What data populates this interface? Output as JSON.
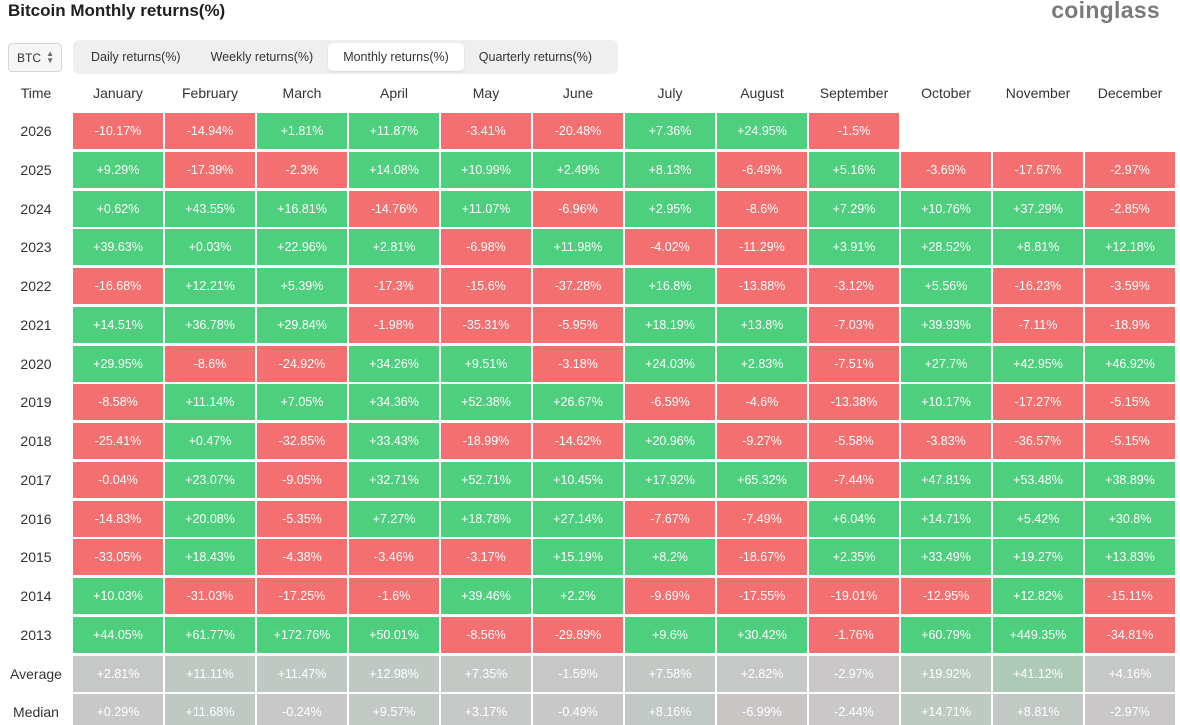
{
  "page": {
    "title": "Bitcoin Monthly returns(%)",
    "brand": "coinglass"
  },
  "symbol_select": {
    "value": "BTC"
  },
  "tabs": [
    {
      "label": "Daily returns(%)",
      "active": false
    },
    {
      "label": "Weekly returns(%)",
      "active": false
    },
    {
      "label": "Monthly returns(%)",
      "active": true
    },
    {
      "label": "Quarterly returns(%)",
      "active": false
    }
  ],
  "colors": {
    "positive": "#4dcf7d",
    "negative": "#f46f6f",
    "neutral": "#c8c8c8"
  },
  "chart_data": {
    "type": "heatmap",
    "title": "Bitcoin Monthly returns(%)",
    "corner_label": "Time",
    "columns": [
      "January",
      "February",
      "March",
      "April",
      "May",
      "June",
      "July",
      "August",
      "September",
      "October",
      "November",
      "December"
    ],
    "rows": [
      {
        "label": "2026",
        "values": [
          "-10.17%",
          "-14.94%",
          "+1.81%",
          "+11.87%",
          "-3.41%",
          "-20.48%",
          "+7.36%",
          "+24.95%",
          "-1.5%",
          null,
          null,
          null
        ]
      },
      {
        "label": "2025",
        "values": [
          "+9.29%",
          "-17.39%",
          "-2.3%",
          "+14.08%",
          "+10.99%",
          "+2.49%",
          "+8.13%",
          "-6.49%",
          "+5.16%",
          "-3.69%",
          "-17.67%",
          "-2.97%"
        ]
      },
      {
        "label": "2024",
        "values": [
          "+0.62%",
          "+43.55%",
          "+16.81%",
          "-14.76%",
          "+11.07%",
          "-6.96%",
          "+2.95%",
          "-8.6%",
          "+7.29%",
          "+10.76%",
          "+37.29%",
          "-2.85%"
        ]
      },
      {
        "label": "2023",
        "values": [
          "+39.63%",
          "+0.03%",
          "+22.96%",
          "+2.81%",
          "-6.98%",
          "+11.98%",
          "-4.02%",
          "-11.29%",
          "+3.91%",
          "+28.52%",
          "+8.81%",
          "+12.18%"
        ]
      },
      {
        "label": "2022",
        "values": [
          "-16.68%",
          "+12.21%",
          "+5.39%",
          "-17.3%",
          "-15.6%",
          "-37.28%",
          "+16.8%",
          "-13.88%",
          "-3.12%",
          "+5.56%",
          "-16.23%",
          "-3.59%"
        ]
      },
      {
        "label": "2021",
        "values": [
          "+14.51%",
          "+36.78%",
          "+29.84%",
          "-1.98%",
          "-35.31%",
          "-5.95%",
          "+18.19%",
          "+13.8%",
          "-7.03%",
          "+39.93%",
          "-7.11%",
          "-18.9%"
        ]
      },
      {
        "label": "2020",
        "values": [
          "+29.95%",
          "-8.6%",
          "-24.92%",
          "+34.26%",
          "+9.51%",
          "-3.18%",
          "+24.03%",
          "+2.83%",
          "-7.51%",
          "+27.7%",
          "+42.95%",
          "+46.92%"
        ]
      },
      {
        "label": "2019",
        "values": [
          "-8.58%",
          "+11.14%",
          "+7.05%",
          "+34.36%",
          "+52.38%",
          "+26.67%",
          "-6.59%",
          "-4.6%",
          "-13.38%",
          "+10.17%",
          "-17.27%",
          "-5.15%"
        ]
      },
      {
        "label": "2018",
        "values": [
          "-25.41%",
          "+0.47%",
          "-32.85%",
          "+33.43%",
          "-18.99%",
          "-14.62%",
          "+20.96%",
          "-9.27%",
          "-5.58%",
          "-3.83%",
          "-36.57%",
          "-5.15%"
        ]
      },
      {
        "label": "2017",
        "values": [
          "-0.04%",
          "+23.07%",
          "-9.05%",
          "+32.71%",
          "+52.71%",
          "+10.45%",
          "+17.92%",
          "+65.32%",
          "-7.44%",
          "+47.81%",
          "+53.48%",
          "+38.89%"
        ]
      },
      {
        "label": "2016",
        "values": [
          "-14.83%",
          "+20.08%",
          "-5.35%",
          "+7.27%",
          "+18.78%",
          "+27.14%",
          "-7.67%",
          "-7.49%",
          "+6.04%",
          "+14.71%",
          "+5.42%",
          "+30.8%"
        ]
      },
      {
        "label": "2015",
        "values": [
          "-33.05%",
          "+18.43%",
          "-4.38%",
          "-3.46%",
          "-3.17%",
          "+15.19%",
          "+8.2%",
          "-18.67%",
          "+2.35%",
          "+33.49%",
          "+19.27%",
          "+13.83%"
        ]
      },
      {
        "label": "2014",
        "values": [
          "+10.03%",
          "-31.03%",
          "-17.25%",
          "-1.6%",
          "+39.46%",
          "+2.2%",
          "-9.69%",
          "-17.55%",
          "-19.01%",
          "-12.95%",
          "+12.82%",
          "-15.11%"
        ]
      },
      {
        "label": "2013",
        "values": [
          "+44.05%",
          "+61.77%",
          "+172.76%",
          "+50.01%",
          "-8.56%",
          "-29.89%",
          "+9.6%",
          "+30.42%",
          "-1.76%",
          "+60.79%",
          "+449.35%",
          "-34.81%"
        ]
      }
    ],
    "summary_rows": [
      {
        "label": "Average",
        "values": [
          "+2.81%",
          "+11.11%",
          "+11.47%",
          "+12.98%",
          "+7.35%",
          "-1.59%",
          "+7.58%",
          "+2.82%",
          "-2.97%",
          "+19.92%",
          "+41.12%",
          "+4.16%"
        ]
      },
      {
        "label": "Median",
        "values": [
          "+0.29%",
          "+11.68%",
          "-0.24%",
          "+9.57%",
          "+3.17%",
          "-0.49%",
          "+8.16%",
          "-6.99%",
          "-2.44%",
          "+14.71%",
          "+8.81%",
          "-2.97%"
        ]
      }
    ]
  }
}
